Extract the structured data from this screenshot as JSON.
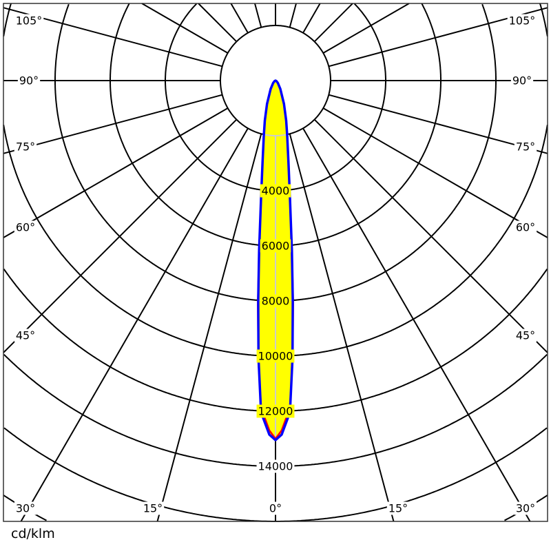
{
  "chart_data": {
    "type": "polar",
    "unit_label": "cd/klm",
    "radial_ticks": [
      2000,
      4000,
      6000,
      8000,
      10000,
      12000,
      14000,
      16000,
      18000
    ],
    "radial_tick_labels": [
      "4000",
      "6000",
      "8000",
      "10000",
      "12000",
      "14000"
    ],
    "angle_labels": {
      "left": [
        "105°",
        "90°",
        "75°",
        "60°",
        "45°",
        "30°",
        "15°"
      ],
      "center": "0°",
      "right": [
        "15°",
        "30°",
        "45°",
        "60°",
        "75°",
        "90°",
        "105°"
      ]
    },
    "angle_step_deg": 15,
    "grid": true,
    "fill_color": "#ffff00",
    "gamma_deg": [
      0,
      1,
      2.5,
      3.5,
      4.5,
      5.5,
      7,
      9,
      12,
      15,
      20,
      30,
      45,
      60,
      90
    ],
    "series": [
      {
        "color": "#ff0000",
        "values": [
          13000,
          12700,
          11900,
          10200,
          8150,
          6250,
          4300,
          3000,
          2050,
          1500,
          900,
          350,
          120,
          40,
          0
        ]
      },
      {
        "color": "#0000ff",
        "values": [
          13050,
          12850,
          12050,
          10100,
          8000,
          6200,
          4300,
          3000,
          2050,
          1500,
          900,
          350,
          120,
          40,
          0
        ]
      }
    ]
  }
}
